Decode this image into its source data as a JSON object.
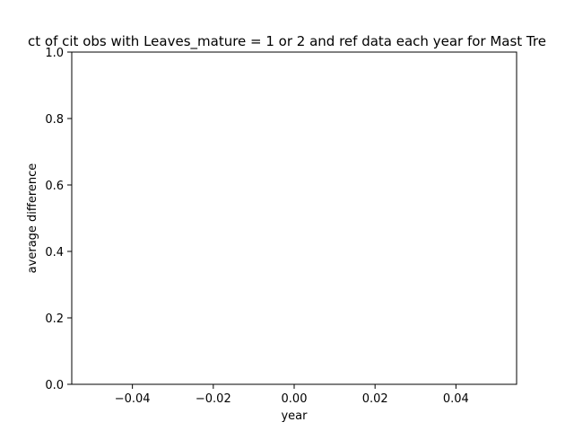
{
  "chart_data": {
    "type": "line",
    "title": "ct of cit obs with Leaves_mature = 1 or 2 and ref data each year for Mast Tre",
    "xlabel": "year",
    "ylabel": "average difference",
    "xlim": [
      -0.055,
      0.055
    ],
    "ylim": [
      0.0,
      1.0
    ],
    "x_ticks": [
      "−0.04",
      "−0.02",
      "0.00",
      "0.02",
      "0.04"
    ],
    "x_tick_values": [
      -0.04,
      -0.02,
      0.0,
      0.02,
      0.04
    ],
    "y_ticks": [
      "0.0",
      "0.2",
      "0.4",
      "0.6",
      "0.8",
      "1.0"
    ],
    "y_tick_values": [
      0.0,
      0.2,
      0.4,
      0.6,
      0.8,
      1.0
    ],
    "grid": false,
    "series": []
  }
}
